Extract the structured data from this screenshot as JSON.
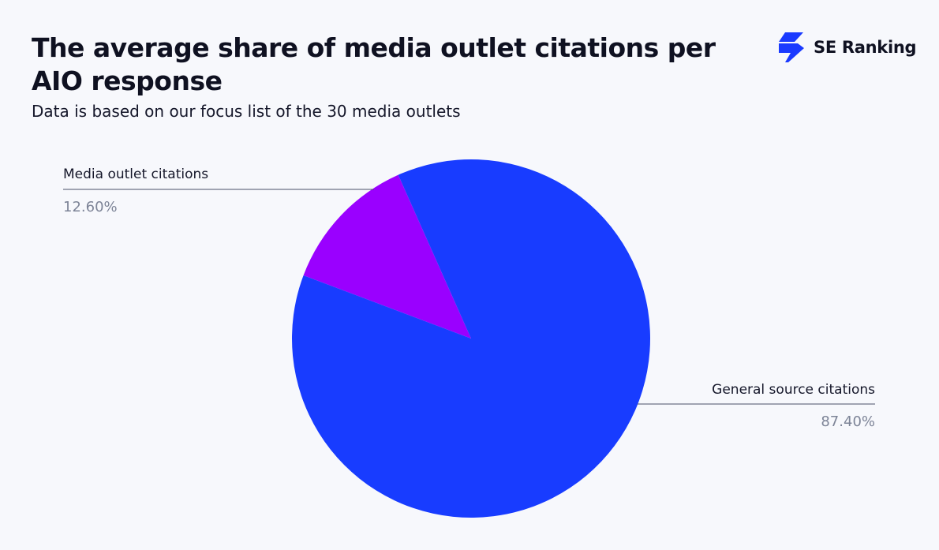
{
  "header": {
    "title": "The average share of media outlet citations per AIO response",
    "subtitle": "Data is based on our focus list of the 30 media outlets"
  },
  "brand": {
    "name": "SE Ranking",
    "icon": "se-ranking-bolt-icon",
    "color": "#1a3aff"
  },
  "colors": {
    "media": "#9a00ff",
    "general": "#183cff",
    "leader_line": "#4a5068"
  },
  "chart_data": {
    "type": "pie",
    "title": "The average share of media outlet citations per AIO response",
    "subtitle": "Data is based on our focus list of the 30 media outlets",
    "legend": "none",
    "slices": [
      {
        "label": "Media outlet citations",
        "value": 12.6,
        "value_label": "12.60%",
        "color": "#9a00ff"
      },
      {
        "label": "General source citations",
        "value": 87.4,
        "value_label": "87.40%",
        "color": "#183cff"
      }
    ]
  }
}
